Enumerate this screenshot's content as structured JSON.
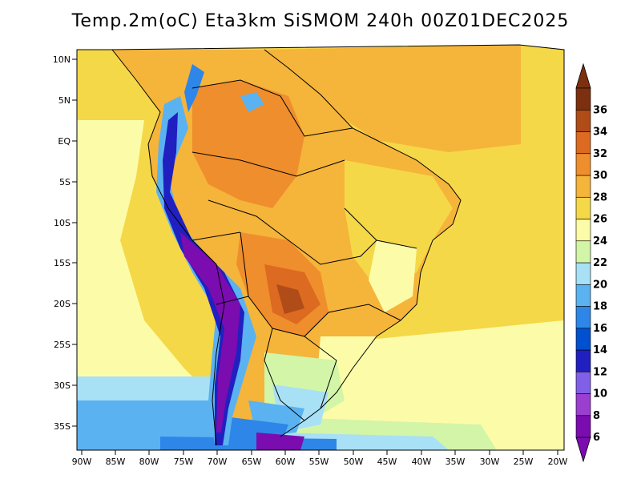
{
  "title": "Temp.2m(oC) Eta3km SiSMOM 240h 00Z01DEC2025",
  "map": {
    "lat_ticks": [
      "10N",
      "5N",
      "EQ",
      "5S",
      "10S",
      "15S",
      "20S",
      "25S",
      "30S",
      "35S"
    ],
    "lon_ticks": [
      "90W",
      "85W",
      "80W",
      "75W",
      "70W",
      "65W",
      "60W",
      "55W",
      "50W",
      "45W",
      "40W",
      "35W",
      "30W",
      "25W",
      "20W"
    ]
  },
  "colorbar": {
    "labels": [
      "6",
      "8",
      "10",
      "12",
      "14",
      "16",
      "18",
      "20",
      "22",
      "24",
      "26",
      "28",
      "30",
      "32",
      "34",
      "36"
    ],
    "colors": [
      "#7a0cb0",
      "#9b3fd0",
      "#8060e8",
      "#2020c0",
      "#0050d0",
      "#2e86e8",
      "#5bb2f0",
      "#a8e0f6",
      "#d2f5a8",
      "#fcfca8",
      "#f5d848",
      "#f5b43a",
      "#ef8e2c",
      "#dc6a20",
      "#b04c18",
      "#7c3010"
    ]
  }
}
